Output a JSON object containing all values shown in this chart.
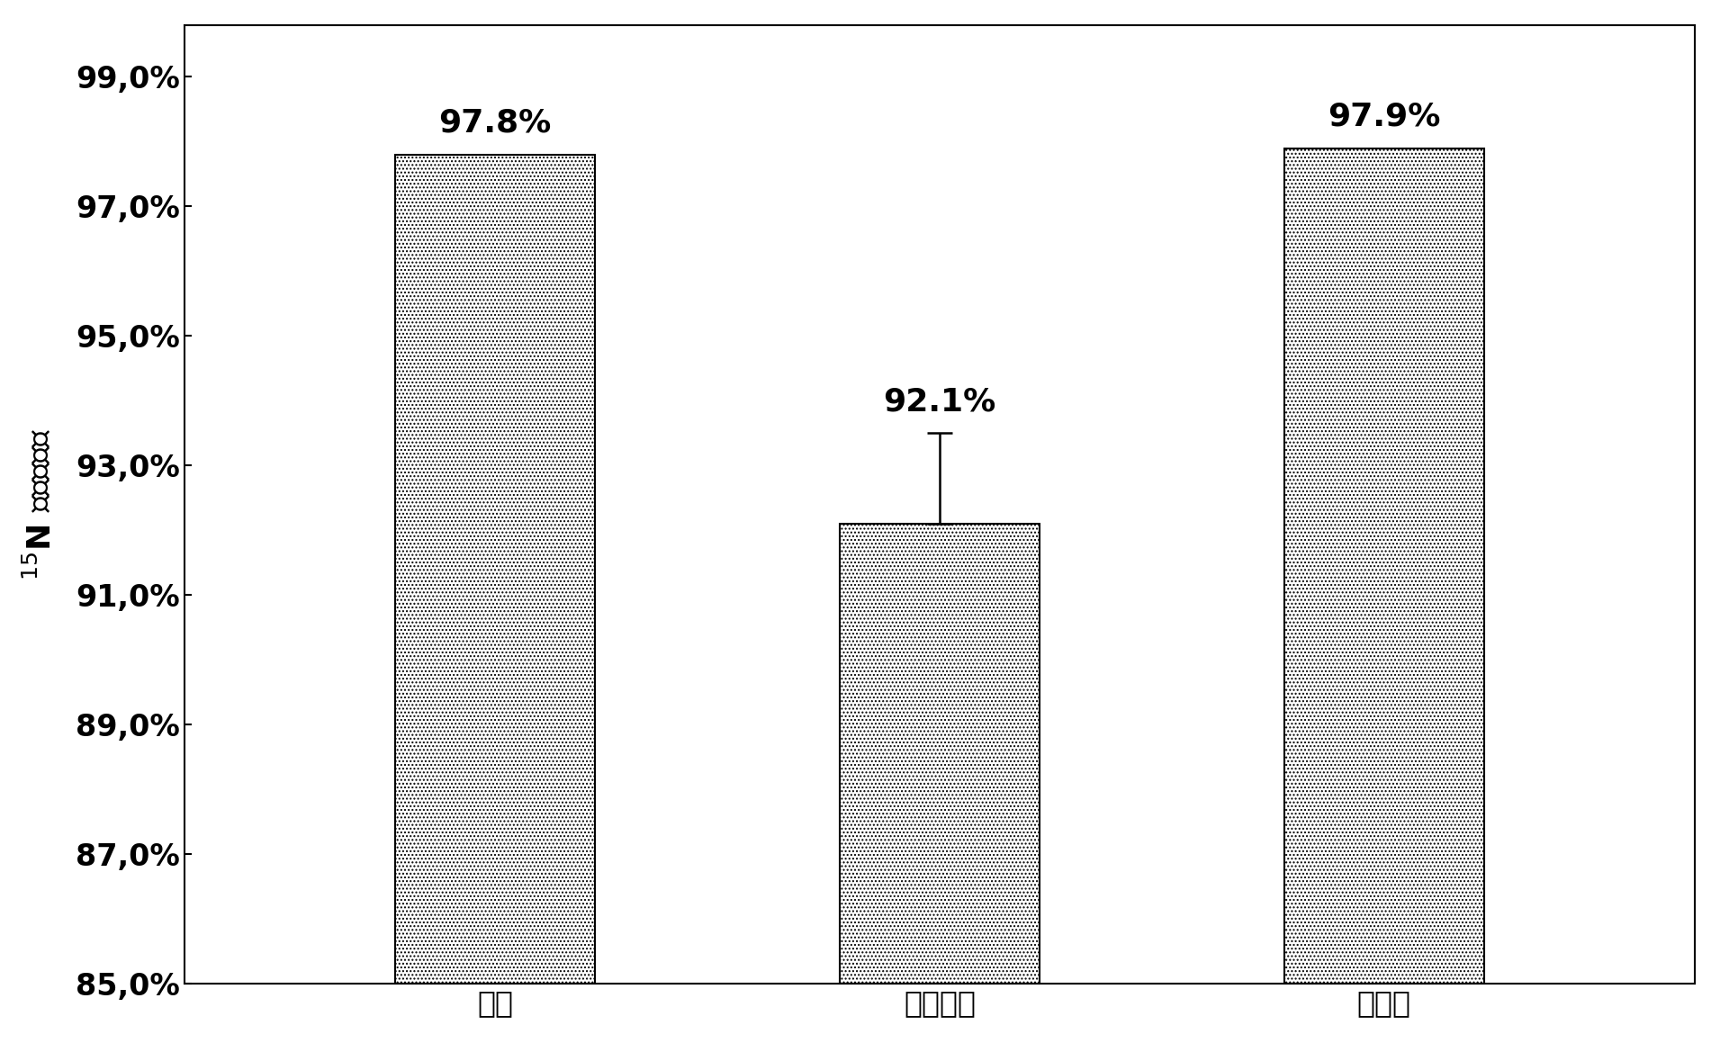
{
  "categories": [
    "对照",
    "未洗涂膜",
    "洗涂膜"
  ],
  "values": [
    97.8,
    92.1,
    97.9
  ],
  "error_bars": [
    0.0,
    1.4,
    0.0
  ],
  "bar_color": "#ffffff",
  "bar_hatch": "....",
  "bar_hatch_color": "#555555",
  "ylabel": "$^{15}$N 同位素分数",
  "ylim": [
    85.0,
    99.8
  ],
  "yticks": [
    85.0,
    87.0,
    89.0,
    91.0,
    93.0,
    95.0,
    97.0,
    99.0
  ],
  "ytick_labels": [
    "85,0%",
    "87,0%",
    "89,0%",
    "91,0%",
    "93,0%",
    "95,0%",
    "97,0%",
    "99,0%"
  ],
  "bar_labels": [
    "97.8%",
    "92.1%",
    "97.9%"
  ],
  "background_color": "#ffffff",
  "plot_bg_color": "#ffffff",
  "figsize": [
    19.11,
    11.59
  ],
  "dpi": 100,
  "bar_width": 0.45,
  "bar_edge_color": "#000000",
  "font_size_ticks": 24,
  "font_size_labels": 26,
  "font_size_bar_labels": 26,
  "spine_linewidth": 1.5,
  "box_visible": true
}
